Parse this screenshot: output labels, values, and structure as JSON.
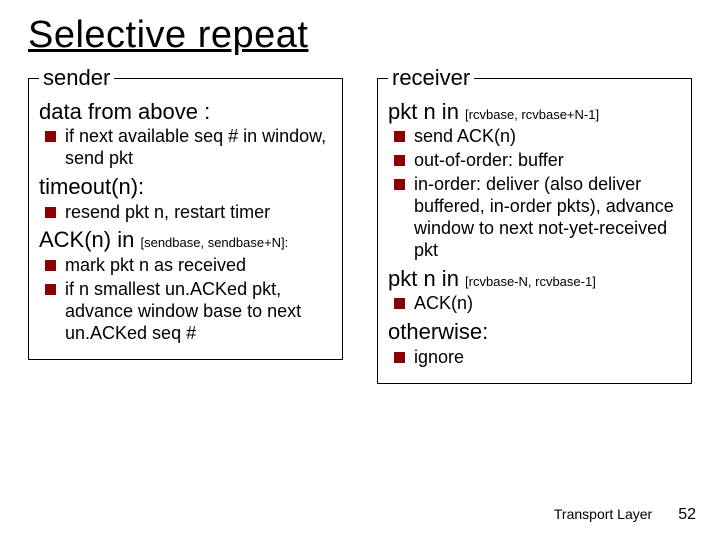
{
  "colors": {
    "bullet": "#8b0000",
    "text": "#000000",
    "bg": "#ffffff",
    "border": "#000000"
  },
  "title": "Selective repeat",
  "sender": {
    "legend": "sender",
    "s1_heading": "data from above :",
    "s1_b1": "if next available seq # in window, send pkt",
    "s2_heading": "timeout(n):",
    "s2_b1": "resend pkt n, restart timer",
    "s3_heading_pre": "ACK(n) in ",
    "s3_heading_sub": "[sendbase, sendbase+N]:",
    "s3_b1": "mark pkt n as received",
    "s3_b2": "if n smallest un.ACKed pkt, advance window base to next un.ACKed seq #"
  },
  "receiver": {
    "legend": "receiver",
    "r1_heading_pre": "pkt n in ",
    "r1_heading_sub": "[rcvbase, rcvbase+N-1]",
    "r1_b1": "send ACK(n)",
    "r1_b2": "out-of-order: buffer",
    "r1_b3": "in-order: deliver (also deliver buffered, in-order pkts), advance window to next not-yet-received pkt",
    "r2_heading_pre": "pkt n in ",
    "r2_heading_sub": "[rcvbase-N, rcvbase-1]",
    "r2_b1": "ACK(n)",
    "r3_heading": "otherwise:",
    "r3_b1": "ignore"
  },
  "footer": {
    "label": "Transport Layer",
    "page": "52"
  }
}
